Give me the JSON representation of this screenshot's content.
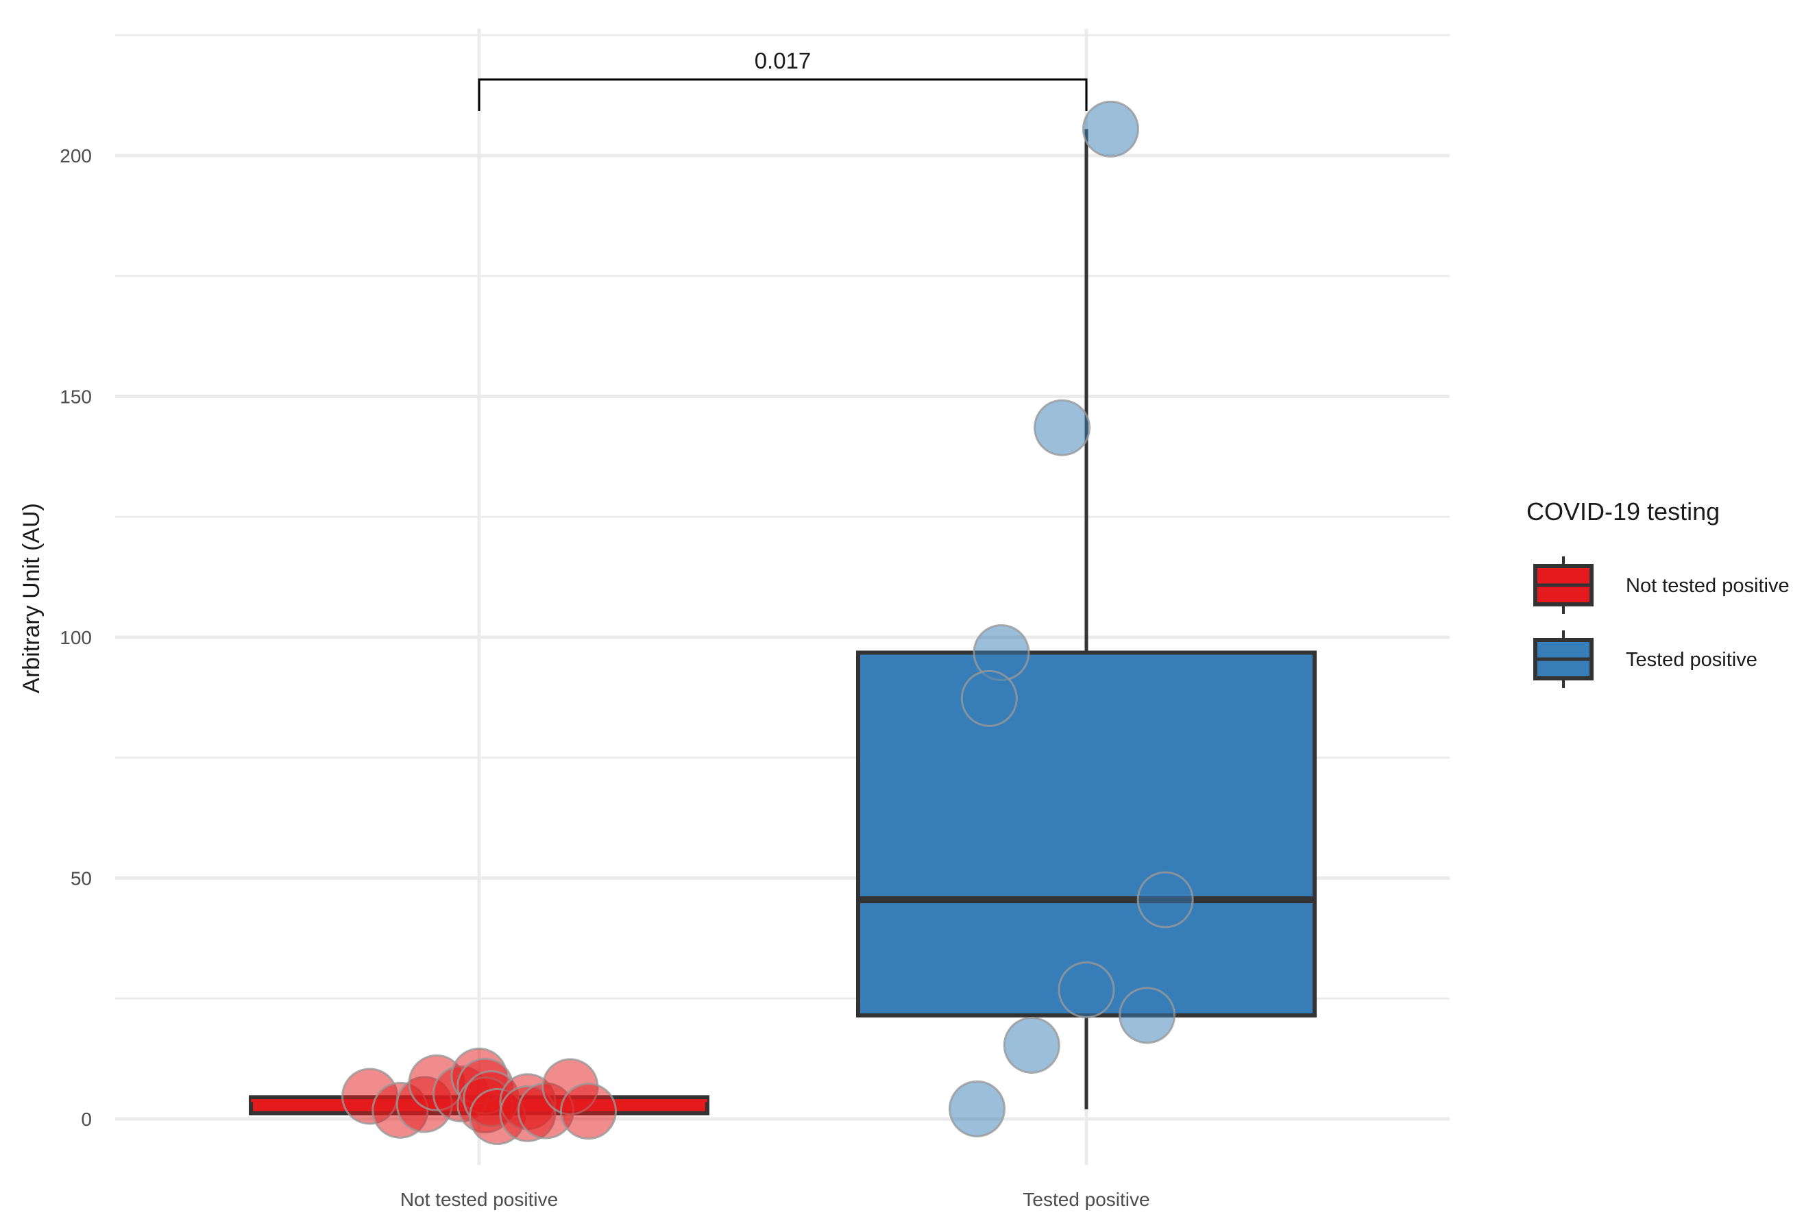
{
  "chart_data": {
    "type": "box",
    "ylabel": "Arbitrary Unit (AU)",
    "xlabel": "",
    "ylim": [
      -10,
      225
    ],
    "y_ticks": [
      0,
      50,
      100,
      150,
      200
    ],
    "grid": true,
    "categories": [
      "Not tested positive",
      "Tested positive"
    ],
    "legend": {
      "title": "COVID-19 testing",
      "position": "right",
      "entries": [
        {
          "label": "Not tested positive",
          "color": "#e41a1c"
        },
        {
          "label": "Tested positive",
          "color": "#377eb8"
        }
      ]
    },
    "significance": {
      "label": "0.017",
      "from": "Not tested positive",
      "to": "Tested positive"
    },
    "series": [
      {
        "name": "Not tested positive",
        "color": "#e41a1c",
        "box": {
          "whisker_low": 1,
          "q1": 1.2,
          "median": 3.8,
          "q3": 4.5,
          "whisker_high": 5
        },
        "points": [
          {
            "jitter": -0.18,
            "y": 4.7
          },
          {
            "jitter": -0.13,
            "y": 1.8
          },
          {
            "jitter": -0.09,
            "y": 3.0
          },
          {
            "jitter": -0.07,
            "y": 7.5
          },
          {
            "jitter": -0.03,
            "y": 5.2
          },
          {
            "jitter": 0.0,
            "y": 8.9
          },
          {
            "jitter": 0.01,
            "y": 6.8
          },
          {
            "jitter": 0.01,
            "y": 2.9
          },
          {
            "jitter": 0.02,
            "y": 4.2
          },
          {
            "jitter": 0.03,
            "y": 0.5
          },
          {
            "jitter": 0.08,
            "y": 3.6
          },
          {
            "jitter": 0.08,
            "y": 1.1
          },
          {
            "jitter": 0.11,
            "y": 1.7
          },
          {
            "jitter": 0.15,
            "y": 6.7
          },
          {
            "jitter": 0.18,
            "y": 1.6
          }
        ]
      },
      {
        "name": "Tested positive",
        "color": "#377eb8",
        "box": {
          "whisker_low": 2,
          "q1": 21.5,
          "median": 45.5,
          "q3": 96.8,
          "whisker_high": 205.5
        },
        "points": [
          {
            "jitter": 0.04,
            "y": 205.5
          },
          {
            "jitter": -0.04,
            "y": 143.5
          },
          {
            "jitter": -0.14,
            "y": 96.8
          },
          {
            "jitter": -0.16,
            "y": 87.3
          },
          {
            "jitter": 0.13,
            "y": 45.5
          },
          {
            "jitter": 0.0,
            "y": 26.8
          },
          {
            "jitter": 0.1,
            "y": 21.5
          },
          {
            "jitter": -0.09,
            "y": 15.3
          },
          {
            "jitter": -0.18,
            "y": 2.1
          }
        ]
      }
    ]
  }
}
